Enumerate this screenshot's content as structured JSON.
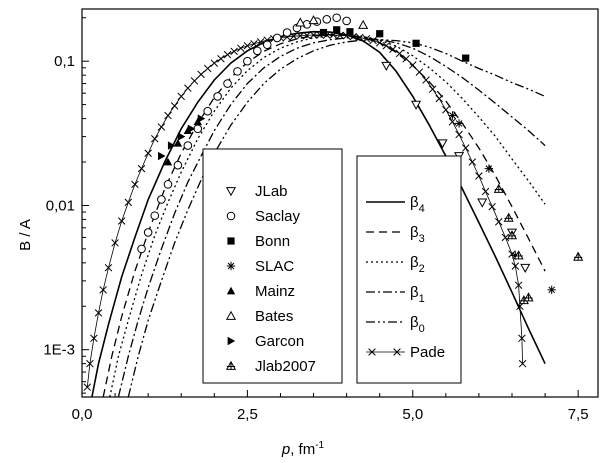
{
  "chart_data": {
    "type": "scatter",
    "ylabel": "B / A",
    "xlabel": "p, fm",
    "xlabel_sup": "-1",
    "xlim": [
      0,
      7.8
    ],
    "ylim": [
      0.00047,
      0.23
    ],
    "y_scale": "log",
    "x_ticks": [
      {
        "value": 0.0,
        "label": "0,0"
      },
      {
        "value": 2.5,
        "label": "2,5"
      },
      {
        "value": 5.0,
        "label": "5,0"
      },
      {
        "value": 7.5,
        "label": "7,5"
      }
    ],
    "y_ticks": [
      {
        "value": 0.001,
        "label": "1E-3"
      },
      {
        "value": 0.01,
        "label": "0,01"
      },
      {
        "value": 0.1,
        "label": "0,1"
      }
    ],
    "grid": false,
    "legend_placement": "center-right",
    "data_series": [
      {
        "name": "JLab",
        "marker": "triangle-down-open",
        "x": [
          4.6,
          5.05,
          5.45,
          5.7,
          6.05,
          6.5,
          6.7
        ],
        "y": [
          0.093,
          0.05,
          0.027,
          0.022,
          0.0105,
          0.0065,
          0.0037
        ]
      },
      {
        "name": "Saclay",
        "marker": "circle-open",
        "x": [
          0.9,
          1.0,
          1.1,
          1.2,
          1.3,
          1.45,
          1.6,
          1.75,
          1.9,
          2.05,
          2.2,
          2.35,
          2.5,
          2.65,
          2.8,
          2.95,
          3.1,
          3.25,
          3.4,
          3.55,
          3.7,
          3.85,
          4.0
        ],
        "y": [
          0.005,
          0.0065,
          0.0085,
          0.011,
          0.014,
          0.019,
          0.026,
          0.034,
          0.045,
          0.057,
          0.07,
          0.085,
          0.1,
          0.118,
          0.13,
          0.145,
          0.158,
          0.17,
          0.18,
          0.188,
          0.195,
          0.2,
          0.19
        ]
      },
      {
        "name": "Bonn",
        "marker": "square-filled",
        "x": [
          3.65,
          3.85,
          4.05,
          4.5,
          5.05,
          5.8
        ],
        "y": [
          0.158,
          0.165,
          0.16,
          0.155,
          0.133,
          0.105
        ]
      },
      {
        "name": "SLAC",
        "marker": "asterisk",
        "x": [
          5.6,
          5.7,
          6.15,
          6.55,
          7.1
        ],
        "y": [
          0.042,
          0.037,
          0.018,
          0.0045,
          0.0026
        ]
      },
      {
        "name": "Mainz",
        "marker": "triangle-up-filled",
        "x": [
          1.3,
          1.45,
          1.6,
          1.75
        ],
        "y": [
          0.02,
          0.027,
          0.033,
          0.038
        ]
      },
      {
        "name": "Bates",
        "marker": "triangle-up-open",
        "x": [
          3.3,
          3.5,
          4.25
        ],
        "y": [
          0.185,
          0.192,
          0.178
        ]
      },
      {
        "name": "Garcon",
        "marker": "triangle-right-filled",
        "x": [
          1.2,
          1.35,
          1.5,
          1.65,
          1.8
        ],
        "y": [
          0.022,
          0.026,
          0.03,
          0.034,
          0.04
        ]
      },
      {
        "name": "Jlab2007",
        "marker": "triangle-up-crossed",
        "x": [
          6.3,
          6.45,
          6.5,
          6.6,
          6.68,
          6.75,
          7.5
        ],
        "y": [
          0.013,
          0.0082,
          0.0062,
          0.0045,
          0.0022,
          0.0023,
          0.0044
        ]
      }
    ],
    "curve_series": [
      {
        "name": "β4",
        "label_base": "β",
        "label_sub": "4",
        "style": "solid",
        "x": [
          0.15,
          0.25,
          0.4,
          0.6,
          0.8,
          1.0,
          1.25,
          1.5,
          1.75,
          2.0,
          2.25,
          2.5,
          2.75,
          3.0,
          3.25,
          3.5,
          3.75,
          4.0,
          4.25,
          4.5,
          4.75,
          5.0,
          5.25,
          5.5,
          5.75,
          6.0,
          6.25,
          6.5,
          6.75,
          7.0
        ],
        "y": [
          0.00047,
          0.0008,
          0.0015,
          0.0032,
          0.006,
          0.011,
          0.02,
          0.034,
          0.052,
          0.074,
          0.097,
          0.118,
          0.135,
          0.148,
          0.156,
          0.16,
          0.159,
          0.152,
          0.138,
          0.115,
          0.085,
          0.057,
          0.036,
          0.022,
          0.013,
          0.0076,
          0.0044,
          0.0025,
          0.0014,
          0.0008
        ]
      },
      {
        "name": "β3",
        "label_base": "β",
        "label_sub": "3",
        "style": "dashed",
        "x": [
          0.32,
          0.45,
          0.6,
          0.8,
          1.0,
          1.25,
          1.5,
          1.75,
          2.0,
          2.25,
          2.5,
          2.75,
          3.0,
          3.25,
          3.5,
          3.75,
          4.0,
          4.25,
          4.5,
          4.75,
          5.0,
          5.25,
          5.5,
          5.75,
          6.0,
          6.25,
          6.5,
          6.75,
          7.0
        ],
        "y": [
          0.00047,
          0.0009,
          0.0017,
          0.0035,
          0.0065,
          0.013,
          0.023,
          0.037,
          0.056,
          0.077,
          0.098,
          0.117,
          0.132,
          0.143,
          0.15,
          0.153,
          0.152,
          0.146,
          0.134,
          0.115,
          0.093,
          0.072,
          0.053,
          0.037,
          0.025,
          0.016,
          0.0098,
          0.0059,
          0.0035
        ]
      },
      {
        "name": "β2",
        "label_base": "β",
        "label_sub": "2",
        "style": "dotted",
        "x": [
          0.42,
          0.55,
          0.7,
          0.9,
          1.1,
          1.3,
          1.5,
          1.75,
          2.0,
          2.25,
          2.5,
          2.75,
          3.0,
          3.25,
          3.5,
          3.75,
          4.0,
          4.25,
          4.5,
          4.75,
          5.0,
          5.25,
          5.5,
          5.75,
          6.0,
          6.25,
          6.5,
          6.75,
          7.0
        ],
        "y": [
          0.00047,
          0.0009,
          0.0016,
          0.0033,
          0.0062,
          0.0105,
          0.017,
          0.029,
          0.045,
          0.065,
          0.086,
          0.106,
          0.123,
          0.136,
          0.145,
          0.15,
          0.151,
          0.148,
          0.14,
          0.127,
          0.109,
          0.09,
          0.072,
          0.055,
          0.041,
          0.03,
          0.021,
          0.0148,
          0.0102
        ]
      },
      {
        "name": "β1",
        "label_base": "β",
        "label_sub": "1",
        "style": "dash-dot",
        "x": [
          0.55,
          0.7,
          0.85,
          1.0,
          1.2,
          1.4,
          1.6,
          1.8,
          2.0,
          2.25,
          2.5,
          2.75,
          3.0,
          3.25,
          3.5,
          3.75,
          4.0,
          4.25,
          4.5,
          4.75,
          5.0,
          5.25,
          5.5,
          5.75,
          6.0,
          6.25,
          6.5,
          6.75,
          7.0
        ],
        "y": [
          0.00047,
          0.0009,
          0.0016,
          0.0027,
          0.005,
          0.0088,
          0.0145,
          0.022,
          0.033,
          0.05,
          0.07,
          0.09,
          0.108,
          0.123,
          0.134,
          0.141,
          0.145,
          0.145,
          0.141,
          0.134,
          0.123,
          0.108,
          0.092,
          0.077,
          0.063,
          0.051,
          0.041,
          0.033,
          0.026
        ]
      },
      {
        "name": "β0",
        "label_base": "β",
        "label_sub": "0",
        "style": "dash-dot-dot",
        "x": [
          0.7,
          0.85,
          1.0,
          1.2,
          1.4,
          1.6,
          1.8,
          2.0,
          2.25,
          2.5,
          2.75,
          3.0,
          3.25,
          3.5,
          3.75,
          4.0,
          4.25,
          4.5,
          4.75,
          5.0,
          5.25,
          5.5,
          5.75,
          6.0,
          6.25,
          6.5,
          6.75,
          7.0
        ],
        "y": [
          0.00047,
          0.0009,
          0.0016,
          0.003,
          0.0055,
          0.0093,
          0.015,
          0.023,
          0.036,
          0.052,
          0.07,
          0.088,
          0.104,
          0.118,
          0.129,
          0.136,
          0.14,
          0.141,
          0.139,
          0.134,
          0.125,
          0.113,
          0.1,
          0.089,
          0.08,
          0.071,
          0.064,
          0.057
        ]
      },
      {
        "name": "Pade",
        "style": "solid-cross",
        "x": [
          0.08,
          0.12,
          0.18,
          0.25,
          0.32,
          0.4,
          0.5,
          0.6,
          0.7,
          0.8,
          0.9,
          1.0,
          1.1,
          1.2,
          1.3,
          1.4,
          1.5,
          1.6,
          1.7,
          1.8,
          1.9,
          2.0,
          2.1,
          2.2,
          2.3,
          2.4,
          2.5,
          2.6,
          2.7,
          2.8,
          2.9,
          3.0,
          3.1,
          3.2,
          3.3,
          3.4,
          3.5,
          3.6,
          3.7,
          3.8,
          3.9,
          4.0,
          4.1,
          4.2,
          4.3,
          4.4,
          4.5,
          4.6,
          4.7,
          4.8,
          4.9,
          5.0,
          5.1,
          5.2,
          5.3,
          5.4,
          5.5,
          5.6,
          5.7,
          5.8,
          5.9,
          6.0,
          6.1,
          6.2,
          6.3,
          6.4,
          6.5,
          6.55,
          6.6,
          6.62,
          6.65,
          6.66
        ],
        "y": [
          0.00055,
          0.0008,
          0.0012,
          0.0018,
          0.0026,
          0.0037,
          0.0055,
          0.0078,
          0.0105,
          0.014,
          0.018,
          0.023,
          0.029,
          0.035,
          0.042,
          0.049,
          0.057,
          0.065,
          0.073,
          0.081,
          0.089,
          0.097,
          0.104,
          0.111,
          0.117,
          0.123,
          0.128,
          0.132,
          0.136,
          0.14,
          0.143,
          0.145,
          0.147,
          0.149,
          0.15,
          0.151,
          0.152,
          0.152,
          0.152,
          0.152,
          0.151,
          0.15,
          0.148,
          0.146,
          0.143,
          0.139,
          0.134,
          0.128,
          0.121,
          0.113,
          0.104,
          0.094,
          0.084,
          0.074,
          0.064,
          0.055,
          0.046,
          0.038,
          0.031,
          0.025,
          0.02,
          0.016,
          0.0125,
          0.0098,
          0.0077,
          0.006,
          0.0046,
          0.0038,
          0.0028,
          0.002,
          0.0012,
          0.0008
        ]
      }
    ]
  }
}
